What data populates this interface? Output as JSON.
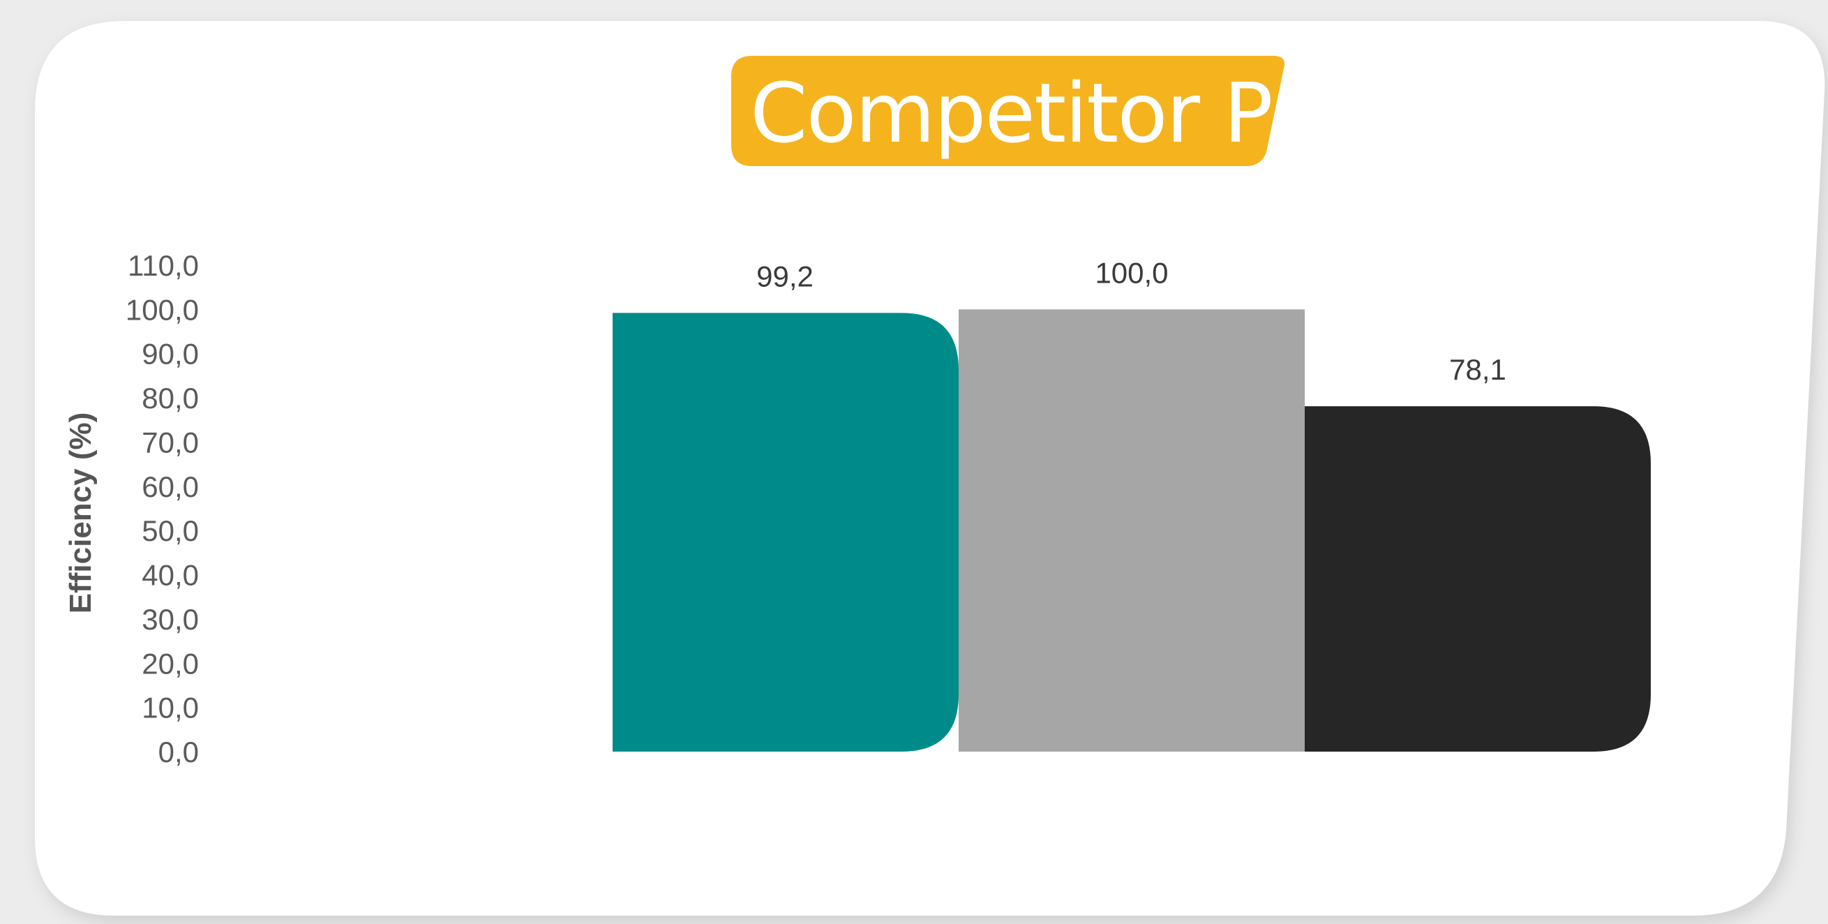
{
  "chart_data": {
    "type": "bar",
    "title": "Competitor P",
    "xlabel": "",
    "ylabel": "Efficiency (%)",
    "categories": [
      "",
      "",
      ""
    ],
    "values": [
      99.2,
      100.0,
      78.1
    ],
    "data_labels": [
      "99,2",
      "100,0",
      "78,1"
    ],
    "bar_colors": [
      "#008b8b",
      "#a6a6a6",
      "#262626"
    ],
    "ylim": [
      0,
      110
    ],
    "yticks": [
      0,
      10,
      20,
      30,
      40,
      50,
      60,
      70,
      80,
      90,
      100,
      110
    ],
    "ytick_labels": [
      "0,0",
      "10,0",
      "20,0",
      "30,0",
      "40,0",
      "50,0",
      "60,0",
      "70,0",
      "80,0",
      "90,0",
      "100,0",
      "110,0"
    ],
    "grid": false,
    "legend": "none"
  },
  "colors": {
    "title_badge": "#f5b41e",
    "card_background": "#ffffff",
    "page_background": "#ececec"
  }
}
